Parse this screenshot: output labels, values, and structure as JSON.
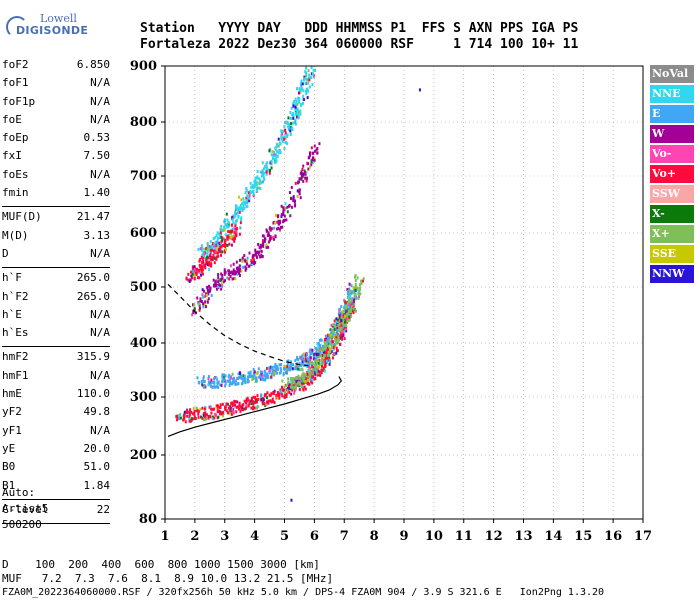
{
  "logo": {
    "line1": "Lowell",
    "line2": "DIGISONDE"
  },
  "header": {
    "line1": "Station   YYYY DAY   DDD HHMMSS P1  FFS S AXN PPS IGA PS",
    "line2": "Fortaleza 2022 Dez30 364 060000 RSF     1 714 100 10+ 11"
  },
  "params_groups": [
    [
      {
        "name": "foF2",
        "value": "6.850"
      },
      {
        "name": "foF1",
        "value": "N/A"
      },
      {
        "name": "foF1p",
        "value": "N/A"
      },
      {
        "name": "foE",
        "value": "N/A"
      },
      {
        "name": "foEp",
        "value": "0.53"
      },
      {
        "name": "fxI",
        "value": "7.50"
      },
      {
        "name": "foEs",
        "value": "N/A"
      },
      {
        "name": "fmin",
        "value": "1.40"
      }
    ],
    [
      {
        "name": "MUF(D)",
        "value": "21.47"
      },
      {
        "name": "M(D)",
        "value": "3.13"
      },
      {
        "name": "D",
        "value": "N/A"
      }
    ],
    [
      {
        "name": "h`F",
        "value": "265.0"
      },
      {
        "name": "h`F2",
        "value": "265.0"
      },
      {
        "name": "h`E",
        "value": "N/A"
      },
      {
        "name": "h`Es",
        "value": "N/A"
      }
    ],
    [
      {
        "name": "hmF2",
        "value": "315.9"
      },
      {
        "name": "hmF1",
        "value": "N/A"
      },
      {
        "name": "hmE",
        "value": "110.0"
      },
      {
        "name": "yF2",
        "value": "49.8"
      },
      {
        "name": "yF1",
        "value": "N/A"
      },
      {
        "name": "yE",
        "value": "20.0"
      },
      {
        "name": "B0",
        "value": "51.0"
      },
      {
        "name": "B1",
        "value": "1.84"
      }
    ],
    [
      {
        "name": "C-level",
        "value": "22"
      }
    ]
  ],
  "auto": {
    "line1": "Auto:",
    "line2": "Artist5",
    "line3": "500200"
  },
  "legend": [
    {
      "label": "NoVal",
      "color": "#8c8c8c"
    },
    {
      "label": "NNE",
      "color": "#2fd7f0"
    },
    {
      "label": "E",
      "color": "#41a7f5"
    },
    {
      "label": "W",
      "color": "#a20099"
    },
    {
      "label": "Vo-",
      "color": "#ff45b4"
    },
    {
      "label": "Vo+",
      "color": "#ff0a3c"
    },
    {
      "label": "SSW",
      "color": "#f9a6a6"
    },
    {
      "label": "X-",
      "color": "#0a7b0a"
    },
    {
      "label": "X+",
      "color": "#7fbf5a"
    },
    {
      "label": "SSE",
      "color": "#c8c800"
    },
    {
      "label": "NNW",
      "color": "#2a14d6"
    }
  ],
  "bottom": {
    "line1": "D    100  200  400  600  800 1000 1500 3000 [km]",
    "line2": "MUF   7.2  7.3  7.6  8.1  8.9 10.0 13.2 21.5 [MHz]",
    "line3": "FZA0M_2022364060000.RSF / 320fx256h 50 kHz 5.0 km / DPS-4 FZA0M 904 / 3.9 S 321.6 E   Ion2Png 1.3.20"
  },
  "chart_data": {
    "type": "scatter",
    "xlim": [
      1,
      17
    ],
    "ylim": [
      80,
      900
    ],
    "x_ticks": [
      1,
      2,
      3,
      4,
      5,
      6,
      7,
      8,
      9,
      10,
      11,
      12,
      13,
      14,
      15,
      16,
      17
    ],
    "y_ticks": [
      80,
      200,
      300,
      400,
      500,
      600,
      700,
      800,
      900
    ],
    "grid": true,
    "legend_position": "right",
    "echo_bands": [
      {
        "series": "E",
        "points": [
          [
            2.2,
            330
          ],
          [
            2.8,
            332
          ],
          [
            3.4,
            336
          ],
          [
            4.0,
            342
          ],
          [
            4.5,
            348
          ],
          [
            5.0,
            356
          ],
          [
            5.5,
            366
          ],
          [
            5.9,
            378
          ],
          [
            6.2,
            392
          ],
          [
            6.5,
            410
          ],
          [
            6.8,
            436
          ],
          [
            7.1,
            470
          ],
          [
            7.3,
            500
          ]
        ]
      },
      {
        "series": "Vo+",
        "points": [
          [
            1.5,
            270
          ],
          [
            2.0,
            272
          ],
          [
            2.6,
            276
          ],
          [
            3.2,
            282
          ],
          [
            3.8,
            290
          ],
          [
            4.4,
            300
          ],
          [
            5.0,
            312
          ],
          [
            5.5,
            326
          ],
          [
            5.9,
            342
          ],
          [
            6.2,
            360
          ],
          [
            6.5,
            384
          ],
          [
            6.8,
            414
          ],
          [
            7.0,
            444
          ],
          [
            7.2,
            480
          ]
        ]
      },
      {
        "series": "NNE",
        "points": [
          [
            2.2,
            560
          ],
          [
            2.6,
            580
          ],
          [
            3.0,
            610
          ],
          [
            3.4,
            640
          ],
          [
            3.8,
            670
          ],
          [
            4.2,
            700
          ],
          [
            4.6,
            740
          ],
          [
            5.0,
            780
          ],
          [
            5.3,
            820
          ],
          [
            5.6,
            860
          ],
          [
            5.9,
            900
          ]
        ]
      },
      {
        "series": "Vo+",
        "points": [
          [
            1.8,
            520
          ],
          [
            2.2,
            540
          ],
          [
            2.6,
            560
          ],
          [
            3.0,
            585
          ],
          [
            3.4,
            612
          ]
        ]
      },
      {
        "series": "W",
        "points": [
          [
            2.0,
            460
          ],
          [
            2.5,
            500
          ],
          [
            3.0,
            520
          ],
          [
            3.5,
            540
          ],
          [
            4.0,
            560
          ],
          [
            4.5,
            600
          ],
          [
            5.0,
            640
          ],
          [
            5.6,
            700
          ],
          [
            6.0,
            760
          ]
        ]
      },
      {
        "series": "X+",
        "points": [
          [
            5.0,
            320
          ],
          [
            5.6,
            340
          ],
          [
            6.0,
            360
          ],
          [
            6.4,
            392
          ],
          [
            6.8,
            430
          ],
          [
            7.2,
            470
          ],
          [
            7.5,
            520
          ]
        ]
      }
    ],
    "curves": [
      {
        "style": "solid",
        "points": [
          [
            1.1,
            232
          ],
          [
            1.5,
            240
          ],
          [
            2.0,
            248
          ],
          [
            2.6,
            256
          ],
          [
            3.2,
            264
          ],
          [
            3.8,
            272
          ],
          [
            4.4,
            280
          ],
          [
            5.0,
            288
          ],
          [
            5.6,
            297
          ],
          [
            6.1,
            305
          ],
          [
            6.5,
            313
          ],
          [
            6.8,
            323
          ],
          [
            6.9,
            330
          ],
          [
            6.82,
            338
          ]
        ]
      },
      {
        "style": "dashed",
        "points": [
          [
            1.1,
            505
          ],
          [
            1.6,
            478
          ],
          [
            2.0,
            456
          ],
          [
            2.5,
            433
          ],
          [
            3.0,
            413
          ],
          [
            3.5,
            398
          ],
          [
            4.0,
            385
          ],
          [
            4.5,
            375
          ],
          [
            5.0,
            366
          ],
          [
            5.5,
            360
          ],
          [
            5.8,
            358
          ]
        ]
      }
    ],
    "isolated_points": [
      [
        9.5,
        860
      ],
      [
        5.2,
        118
      ]
    ]
  }
}
